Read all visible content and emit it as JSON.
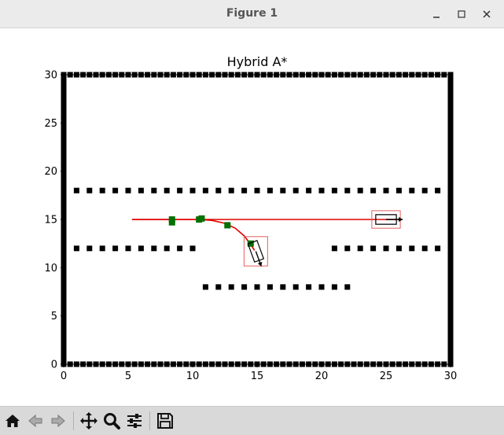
{
  "window": {
    "title": "Figure 1"
  },
  "toolbar": {
    "buttons": [
      {
        "name": "home-icon",
        "icon": "home"
      },
      {
        "name": "back-icon",
        "icon": "arrow-left"
      },
      {
        "name": "forward-icon",
        "icon": "arrow-right"
      },
      {
        "name": "pan-icon",
        "icon": "move-arrows"
      },
      {
        "name": "zoom-icon",
        "icon": "magnifier"
      },
      {
        "name": "configure-subplots-icon",
        "icon": "sliders"
      },
      {
        "name": "save-icon",
        "icon": "floppy-disk"
      }
    ]
  },
  "chart_data": {
    "type": "scatter",
    "title": "Hybrid A*",
    "xlim": [
      0,
      30
    ],
    "ylim": [
      0,
      30
    ],
    "xticks": [
      "0",
      "5",
      "10",
      "15",
      "20",
      "25",
      "30"
    ],
    "yticks": [
      "0",
      "5",
      "10",
      "15",
      "20",
      "25",
      "30"
    ],
    "grid": false,
    "colors": {
      "obstacle": "#000000",
      "path": "#e00000",
      "node": "#007000",
      "vehicle_outline": "#000000",
      "bounding_box": "#e06060"
    },
    "obstacles": {
      "border_bottom_y": 0,
      "border_top_y": 30,
      "border_left_x": 0,
      "border_right_x": 30,
      "border_spacing": 0.5,
      "rows": [
        {
          "y": 18,
          "x_from": 1,
          "x_to": 29,
          "step": 1
        },
        {
          "y": 12,
          "x_from": 1,
          "x_to": 10,
          "step": 1
        },
        {
          "y": 12,
          "x_from": 21,
          "x_to": 29,
          "step": 1
        },
        {
          "y": 8,
          "x_from": 11,
          "x_to": 22,
          "step": 1
        }
      ]
    },
    "path": [
      [
        5.3,
        15.0
      ],
      [
        8.0,
        15.0
      ],
      [
        10.5,
        15.0
      ],
      [
        11.5,
        14.9
      ],
      [
        12.5,
        14.6
      ],
      [
        13.3,
        14.1
      ],
      [
        14.0,
        13.3
      ],
      [
        14.5,
        12.4
      ],
      [
        14.8,
        11.8
      ]
    ],
    "start_line": {
      "x_from": 5.3,
      "x_to": 26.0,
      "y": 15.0
    },
    "nodes": [
      [
        8.4,
        15.0
      ],
      [
        8.4,
        14.7
      ],
      [
        10.5,
        15.0
      ],
      [
        10.7,
        15.1
      ],
      [
        12.7,
        14.4
      ],
      [
        14.5,
        12.5
      ]
    ],
    "goal_vehicle": {
      "x": 25.0,
      "y": 15.0,
      "heading_deg": 0,
      "length": 1.6,
      "width": 1.0
    },
    "start_vehicle": {
      "x": 14.9,
      "y": 11.7,
      "heading_deg": -70,
      "length": 1.5,
      "width": 1.0
    }
  }
}
